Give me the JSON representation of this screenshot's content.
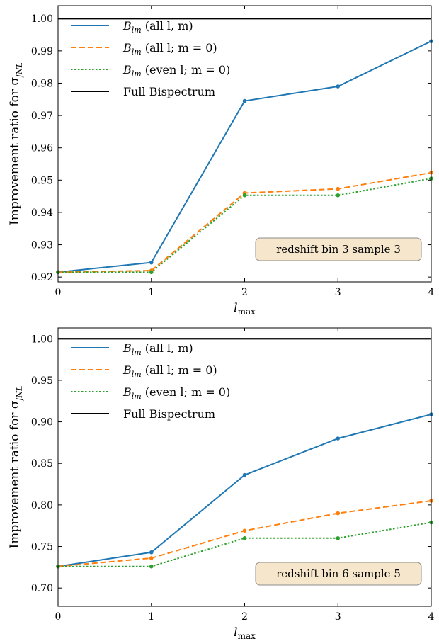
{
  "chart_data": [
    {
      "type": "line",
      "x": [
        0,
        1,
        2,
        3,
        4
      ],
      "xlabel": "l",
      "xlabel_sub": "max",
      "ylabel": "Improvement ratio for σ",
      "ylabel_sub": "fNL",
      "xlim": [
        0,
        4
      ],
      "ylim": [
        0.9185,
        1.004
      ],
      "yticks": [
        0.92,
        0.93,
        0.94,
        0.95,
        0.96,
        0.97,
        0.98,
        0.99,
        1.0
      ],
      "ytick_labels": [
        "0.92",
        "0.93",
        "0.94",
        "0.95",
        "0.96",
        "0.97",
        "0.98",
        "0.99",
        "1.00"
      ],
      "xticks": [
        0,
        1,
        2,
        3,
        4
      ],
      "xtick_labels": [
        "0",
        "1",
        "2",
        "3",
        "4"
      ],
      "grid": false,
      "legend_position": "top-left",
      "annotation": "redshift bin 3 sample 3",
      "series": [
        {
          "name": "B_lm (all l, m)",
          "label_main": "B",
          "label_sub": "lm",
          "label_rest": " (all l, m)",
          "color": "#1f77b4",
          "style": "solid",
          "markers": true,
          "values": [
            0.9215,
            0.9245,
            0.9745,
            0.979,
            0.993
          ]
        },
        {
          "name": "B_lm (all l; m = 0)",
          "label_main": "B",
          "label_sub": "lm",
          "label_rest": " (all l; m = 0)",
          "color": "#ff7f0e",
          "style": "dashed",
          "markers": true,
          "values": [
            0.9215,
            0.922,
            0.946,
            0.9473,
            0.9523
          ]
        },
        {
          "name": "B_lm (even l; m = 0)",
          "label_main": "B",
          "label_sub": "lm",
          "label_rest": " (even l; m = 0)",
          "color": "#2ca02c",
          "style": "dotted",
          "markers": true,
          "values": [
            0.9215,
            0.9215,
            0.9453,
            0.9453,
            0.9505
          ]
        },
        {
          "name": "Full Bispectrum",
          "label_main": "Full Bispectrum",
          "label_sub": "",
          "label_rest": "",
          "color": "#000000",
          "style": "solid",
          "markers": false,
          "values": [
            1.0,
            1.0,
            1.0,
            1.0,
            1.0
          ]
        }
      ]
    },
    {
      "type": "line",
      "x": [
        0,
        1,
        2,
        3,
        4
      ],
      "xlabel": "l",
      "xlabel_sub": "max",
      "ylabel": "Improvement ratio for σ",
      "ylabel_sub": "fNL",
      "xlim": [
        0,
        4
      ],
      "ylim": [
        0.678,
        1.013
      ],
      "yticks": [
        0.7,
        0.75,
        0.8,
        0.85,
        0.9,
        0.95,
        1.0
      ],
      "ytick_labels": [
        "0.70",
        "0.75",
        "0.80",
        "0.85",
        "0.90",
        "0.95",
        "1.00"
      ],
      "xticks": [
        0,
        1,
        2,
        3,
        4
      ],
      "xtick_labels": [
        "0",
        "1",
        "2",
        "3",
        "4"
      ],
      "grid": false,
      "legend_position": "top-left",
      "annotation": "redshift bin 6 sample 5",
      "series": [
        {
          "name": "B_lm (all l, m)",
          "label_main": "B",
          "label_sub": "lm",
          "label_rest": " (all l, m)",
          "color": "#1f77b4",
          "style": "solid",
          "markers": true,
          "values": [
            0.726,
            0.743,
            0.836,
            0.88,
            0.909
          ]
        },
        {
          "name": "B_lm (all l; m = 0)",
          "label_main": "B",
          "label_sub": "lm",
          "label_rest": " (all l; m = 0)",
          "color": "#ff7f0e",
          "style": "dashed",
          "markers": true,
          "values": [
            0.726,
            0.736,
            0.769,
            0.79,
            0.805
          ]
        },
        {
          "name": "B_lm (even l; m = 0)",
          "label_main": "B",
          "label_sub": "lm",
          "label_rest": " (even l; m = 0)",
          "color": "#2ca02c",
          "style": "dotted",
          "markers": true,
          "values": [
            0.726,
            0.726,
            0.76,
            0.76,
            0.779
          ]
        },
        {
          "name": "Full Bispectrum",
          "label_main": "Full Bispectrum",
          "label_sub": "",
          "label_rest": "",
          "color": "#000000",
          "style": "solid",
          "markers": false,
          "values": [
            1.0,
            1.0,
            1.0,
            1.0,
            1.0
          ]
        }
      ]
    }
  ]
}
